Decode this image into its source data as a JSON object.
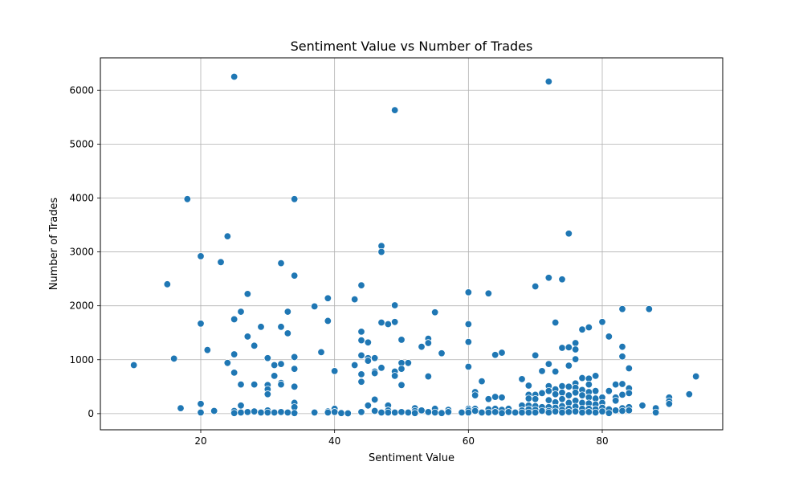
{
  "chart_data": {
    "type": "scatter",
    "title": "Sentiment Value vs Number of Trades",
    "xlabel": "Sentiment Value",
    "ylabel": "Number of Trades",
    "xlim": [
      5,
      98
    ],
    "ylim": [
      -300,
      6600
    ],
    "xticks": [
      20,
      40,
      60,
      80
    ],
    "yticks": [
      0,
      1000,
      2000,
      3000,
      4000,
      5000,
      6000
    ],
    "grid": true,
    "marker_color": "#1f77b4",
    "marker_edge": "#ffffff",
    "points": [
      [
        10,
        900
      ],
      [
        15,
        2400
      ],
      [
        16,
        1020
      ],
      [
        17,
        100
      ],
      [
        18,
        3980
      ],
      [
        20,
        2920
      ],
      [
        20,
        1670
      ],
      [
        20,
        180
      ],
      [
        20,
        20
      ],
      [
        21,
        1180
      ],
      [
        22,
        50
      ],
      [
        23,
        2810
      ],
      [
        24,
        3290
      ],
      [
        24,
        940
      ],
      [
        25,
        6250
      ],
      [
        25,
        1750
      ],
      [
        25,
        1100
      ],
      [
        25,
        760
      ],
      [
        25,
        50
      ],
      [
        25,
        10
      ],
      [
        26,
        1890
      ],
      [
        26,
        540
      ],
      [
        26,
        150
      ],
      [
        26,
        20
      ],
      [
        27,
        2220
      ],
      [
        27,
        1430
      ],
      [
        27,
        30
      ],
      [
        28,
        1260
      ],
      [
        28,
        540
      ],
      [
        28,
        40
      ],
      [
        29,
        1610
      ],
      [
        29,
        20
      ],
      [
        30,
        1030
      ],
      [
        30,
        530
      ],
      [
        30,
        450
      ],
      [
        30,
        360
      ],
      [
        30,
        60
      ],
      [
        30,
        20
      ],
      [
        31,
        900
      ],
      [
        31,
        700
      ],
      [
        31,
        20
      ],
      [
        32,
        2790
      ],
      [
        32,
        1610
      ],
      [
        32,
        920
      ],
      [
        32,
        570
      ],
      [
        32,
        540
      ],
      [
        32,
        30
      ],
      [
        33,
        1890
      ],
      [
        33,
        1490
      ],
      [
        33,
        20
      ],
      [
        34,
        3980
      ],
      [
        34,
        2560
      ],
      [
        34,
        1050
      ],
      [
        34,
        830
      ],
      [
        34,
        500
      ],
      [
        34,
        200
      ],
      [
        34,
        120
      ],
      [
        34,
        10
      ],
      [
        37,
        1990
      ],
      [
        37,
        20
      ],
      [
        38,
        1140
      ],
      [
        39,
        2140
      ],
      [
        39,
        1720
      ],
      [
        39,
        40
      ],
      [
        39,
        20
      ],
      [
        40,
        790
      ],
      [
        40,
        90
      ],
      [
        40,
        30
      ],
      [
        41,
        10
      ],
      [
        42,
        5
      ],
      [
        43,
        2120
      ],
      [
        43,
        900
      ],
      [
        44,
        2380
      ],
      [
        44,
        1520
      ],
      [
        44,
        1360
      ],
      [
        44,
        1080
      ],
      [
        44,
        730
      ],
      [
        44,
        590
      ],
      [
        44,
        30
      ],
      [
        45,
        1320
      ],
      [
        45,
        1030
      ],
      [
        45,
        980
      ],
      [
        45,
        150
      ],
      [
        46,
        1030
      ],
      [
        46,
        780
      ],
      [
        46,
        750
      ],
      [
        46,
        260
      ],
      [
        46,
        50
      ],
      [
        47,
        3110
      ],
      [
        47,
        3000
      ],
      [
        47,
        1690
      ],
      [
        47,
        850
      ],
      [
        47,
        20
      ],
      [
        48,
        1660
      ],
      [
        48,
        150
      ],
      [
        48,
        60
      ],
      [
        48,
        20
      ],
      [
        49,
        5630
      ],
      [
        49,
        2010
      ],
      [
        49,
        1700
      ],
      [
        49,
        780
      ],
      [
        49,
        700
      ],
      [
        49,
        20
      ],
      [
        50,
        1370
      ],
      [
        50,
        940
      ],
      [
        50,
        830
      ],
      [
        50,
        530
      ],
      [
        50,
        30
      ],
      [
        51,
        940
      ],
      [
        51,
        20
      ],
      [
        52,
        100
      ],
      [
        52,
        50
      ],
      [
        52,
        10
      ],
      [
        53,
        1240
      ],
      [
        53,
        60
      ],
      [
        54,
        1390
      ],
      [
        54,
        1310
      ],
      [
        54,
        690
      ],
      [
        54,
        30
      ],
      [
        55,
        1880
      ],
      [
        55,
        90
      ],
      [
        55,
        20
      ],
      [
        56,
        1120
      ],
      [
        56,
        10
      ],
      [
        57,
        70
      ],
      [
        57,
        30
      ],
      [
        59,
        20
      ],
      [
        60,
        2250
      ],
      [
        60,
        1660
      ],
      [
        60,
        1330
      ],
      [
        60,
        870
      ],
      [
        60,
        90
      ],
      [
        60,
        60
      ],
      [
        60,
        20
      ],
      [
        61,
        400
      ],
      [
        61,
        340
      ],
      [
        61,
        90
      ],
      [
        61,
        50
      ],
      [
        62,
        600
      ],
      [
        62,
        20
      ],
      [
        63,
        2230
      ],
      [
        63,
        270
      ],
      [
        63,
        80
      ],
      [
        63,
        20
      ],
      [
        64,
        1090
      ],
      [
        64,
        310
      ],
      [
        64,
        90
      ],
      [
        64,
        30
      ],
      [
        65,
        1130
      ],
      [
        65,
        300
      ],
      [
        65,
        70
      ],
      [
        65,
        10
      ],
      [
        66,
        90
      ],
      [
        66,
        30
      ],
      [
        67,
        20
      ],
      [
        68,
        640
      ],
      [
        68,
        150
      ],
      [
        68,
        60
      ],
      [
        68,
        20
      ],
      [
        69,
        520
      ],
      [
        69,
        350
      ],
      [
        69,
        280
      ],
      [
        69,
        150
      ],
      [
        69,
        80
      ],
      [
        69,
        20
      ],
      [
        70,
        2360
      ],
      [
        70,
        1080
      ],
      [
        70,
        350
      ],
      [
        70,
        270
      ],
      [
        70,
        140
      ],
      [
        70,
        70
      ],
      [
        70,
        20
      ],
      [
        71,
        790
      ],
      [
        71,
        380
      ],
      [
        71,
        120
      ],
      [
        71,
        50
      ],
      [
        72,
        6160
      ],
      [
        72,
        2520
      ],
      [
        72,
        920
      ],
      [
        72,
        510
      ],
      [
        72,
        420
      ],
      [
        72,
        250
      ],
      [
        72,
        120
      ],
      [
        72,
        50
      ],
      [
        72,
        20
      ],
      [
        73,
        1690
      ],
      [
        73,
        780
      ],
      [
        73,
        450
      ],
      [
        73,
        360
      ],
      [
        73,
        210
      ],
      [
        73,
        110
      ],
      [
        73,
        40
      ],
      [
        74,
        2490
      ],
      [
        74,
        1220
      ],
      [
        74,
        510
      ],
      [
        74,
        390
      ],
      [
        74,
        270
      ],
      [
        74,
        140
      ],
      [
        74,
        70
      ],
      [
        74,
        20
      ],
      [
        75,
        3340
      ],
      [
        75,
        1230
      ],
      [
        75,
        890
      ],
      [
        75,
        500
      ],
      [
        75,
        340
      ],
      [
        75,
        200
      ],
      [
        75,
        90
      ],
      [
        75,
        30
      ],
      [
        76,
        1310
      ],
      [
        76,
        1190
      ],
      [
        76,
        1010
      ],
      [
        76,
        560
      ],
      [
        76,
        480
      ],
      [
        76,
        390
      ],
      [
        76,
        240
      ],
      [
        76,
        130
      ],
      [
        76,
        40
      ],
      [
        77,
        1560
      ],
      [
        77,
        660
      ],
      [
        77,
        440
      ],
      [
        77,
        340
      ],
      [
        77,
        200
      ],
      [
        77,
        90
      ],
      [
        77,
        20
      ],
      [
        78,
        1600
      ],
      [
        78,
        650
      ],
      [
        78,
        540
      ],
      [
        78,
        400
      ],
      [
        78,
        300
      ],
      [
        78,
        190
      ],
      [
        78,
        90
      ],
      [
        78,
        30
      ],
      [
        79,
        700
      ],
      [
        79,
        420
      ],
      [
        79,
        280
      ],
      [
        79,
        170
      ],
      [
        79,
        80
      ],
      [
        79,
        20
      ],
      [
        80,
        1700
      ],
      [
        80,
        300
      ],
      [
        80,
        200
      ],
      [
        80,
        110
      ],
      [
        80,
        40
      ],
      [
        81,
        1430
      ],
      [
        81,
        420
      ],
      [
        81,
        80
      ],
      [
        81,
        10
      ],
      [
        82,
        540
      ],
      [
        82,
        300
      ],
      [
        82,
        240
      ],
      [
        82,
        60
      ],
      [
        83,
        1940
      ],
      [
        83,
        1240
      ],
      [
        83,
        1060
      ],
      [
        83,
        550
      ],
      [
        83,
        350
      ],
      [
        83,
        100
      ],
      [
        83,
        50
      ],
      [
        84,
        840
      ],
      [
        84,
        470
      ],
      [
        84,
        380
      ],
      [
        84,
        120
      ],
      [
        84,
        60
      ],
      [
        86,
        150
      ],
      [
        87,
        1940
      ],
      [
        88,
        100
      ],
      [
        88,
        20
      ],
      [
        90,
        300
      ],
      [
        90,
        230
      ],
      [
        90,
        180
      ],
      [
        93,
        360
      ],
      [
        94,
        690
      ]
    ]
  }
}
